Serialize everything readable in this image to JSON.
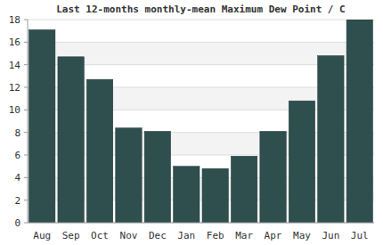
{
  "chart_data": {
    "type": "bar",
    "title": "Last 12-months monthly-mean Maximum Dew Point / C",
    "categories": [
      "Aug",
      "Sep",
      "Oct",
      "Nov",
      "Dec",
      "Jan",
      "Feb",
      "Mar",
      "Apr",
      "May",
      "Jun",
      "Jul"
    ],
    "values": [
      17.1,
      14.7,
      12.7,
      8.4,
      8.1,
      5.0,
      4.8,
      5.9,
      8.1,
      10.8,
      14.8,
      18.0
    ],
    "color": "#2f4f4f",
    "ylim": [
      0,
      18
    ],
    "yticks": [
      0,
      2,
      4,
      6,
      8,
      10,
      12,
      14,
      16,
      18
    ],
    "grid": true
  }
}
